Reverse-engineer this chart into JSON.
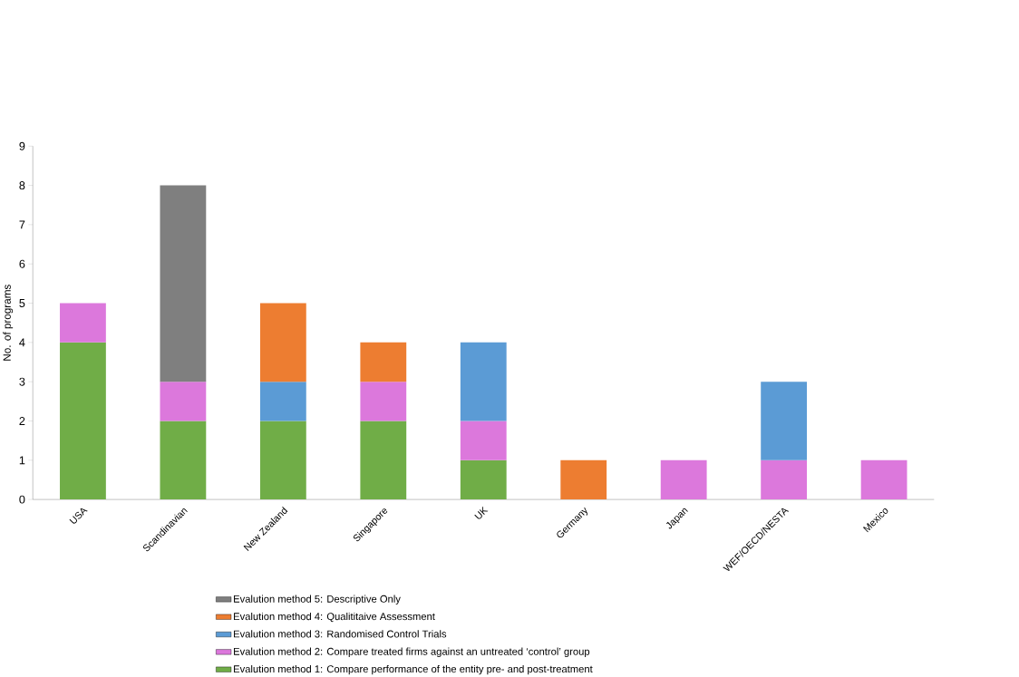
{
  "chart_data": {
    "type": "bar",
    "stacked": true,
    "ylabel": "No. of programs",
    "categories": [
      "USA",
      "Scandinavian",
      "New Zealand",
      "Singapore",
      "UK",
      "Germany",
      "Japan",
      "WEF/OECD/NESTA",
      "Mexico"
    ],
    "series": [
      {
        "name": "Evalution method 1: Compare performance of the entity pre- and post-treatment",
        "color": "#70ad47",
        "values": [
          4,
          2,
          2,
          2,
          1,
          0,
          0,
          0,
          0
        ]
      },
      {
        "name": "Evalution method 2: Compare treated firms against an untreated ‘control’ group",
        "color": "#dc78dc",
        "values": [
          1,
          1,
          0,
          1,
          1,
          0,
          1,
          1,
          1
        ]
      },
      {
        "name": "Evalution method 3: Randomised Control Trials",
        "color": "#5b9bd5",
        "values": [
          0,
          0,
          1,
          0,
          2,
          0,
          0,
          2,
          0
        ]
      },
      {
        "name": "Evalution method 4: Qualititaive Assessment",
        "color": "#ed7d31",
        "values": [
          0,
          0,
          2,
          1,
          0,
          1,
          0,
          0,
          0
        ]
      },
      {
        "name": "Evalution method 5: Descriptive Only",
        "color": "#7f7f7f",
        "values": [
          0,
          5,
          0,
          0,
          0,
          0,
          0,
          0,
          0
        ]
      }
    ],
    "ylim": [
      0,
      9
    ],
    "yticks": [
      0,
      1,
      2,
      3,
      4,
      5,
      6,
      7,
      8,
      9
    ],
    "legend": "bottom"
  }
}
